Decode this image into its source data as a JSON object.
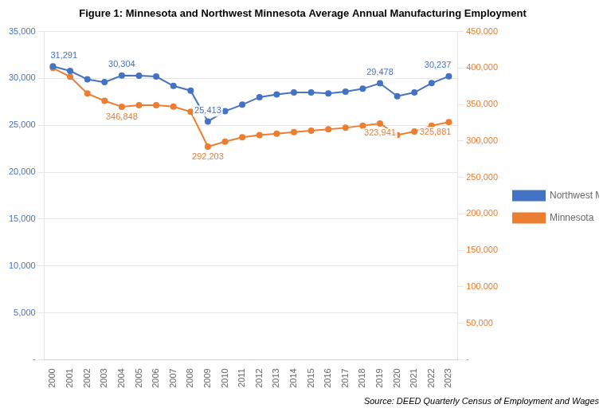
{
  "chart_data": {
    "type": "line",
    "title": "Figure 1: Minnesota and Northwest Minnesota Average Annual Manufacturing Employment",
    "source": "Source: DEED Quarterly Census of Employment and Wages",
    "x": [
      2000,
      2001,
      2002,
      2003,
      2004,
      2005,
      2006,
      2007,
      2008,
      2009,
      2010,
      2011,
      2012,
      2013,
      2014,
      2015,
      2016,
      2017,
      2018,
      2019,
      2020,
      2021,
      2022,
      2023
    ],
    "xlim": [
      1999.5,
      2023.5
    ],
    "xticks": [
      2000,
      2001,
      2002,
      2003,
      2004,
      2005,
      2006,
      2007,
      2008,
      2009,
      2010,
      2011,
      2012,
      2013,
      2014,
      2015,
      2016,
      2017,
      2018,
      2019,
      2020,
      2021,
      2022,
      2023
    ],
    "ylim": [
      0,
      35000
    ],
    "yticks": [
      {
        "value": 0,
        "label": "-"
      },
      {
        "value": 5000,
        "label": "5,000"
      },
      {
        "value": 10000,
        "label": "10,000"
      },
      {
        "value": 15000,
        "label": "15,000"
      },
      {
        "value": 20000,
        "label": "20,000"
      },
      {
        "value": 25000,
        "label": "25,000"
      },
      {
        "value": 30000,
        "label": "30,000"
      },
      {
        "value": 35000,
        "label": "35,000"
      }
    ],
    "y2lim": [
      0,
      450000
    ],
    "y2ticks": [
      {
        "value": 0,
        "label": "-"
      },
      {
        "value": 50000,
        "label": "50,000"
      },
      {
        "value": 100000,
        "label": "100,000"
      },
      {
        "value": 150000,
        "label": "150,000"
      },
      {
        "value": 200000,
        "label": "200,000"
      },
      {
        "value": 250000,
        "label": "250,000"
      },
      {
        "value": 300000,
        "label": "300,000"
      },
      {
        "value": 350000,
        "label": "350,000"
      },
      {
        "value": 400000,
        "label": "400,000"
      },
      {
        "value": 450000,
        "label": "450,000"
      }
    ],
    "grid": true,
    "legend": "right",
    "series": [
      {
        "name": "Northwest Minnesota",
        "color": "#4472C4",
        "axis": "y",
        "marker": "circle",
        "values": [
          31291,
          30800,
          29900,
          29600,
          30304,
          30300,
          30200,
          29200,
          28700,
          25413,
          26500,
          27200,
          28000,
          28300,
          28500,
          28500,
          28400,
          28600,
          28900,
          29478,
          28100,
          28500,
          29500,
          30237
        ],
        "value_labels": [
          "31,291",
          null,
          null,
          null,
          "30,304",
          null,
          null,
          null,
          null,
          "25,413",
          null,
          null,
          null,
          null,
          null,
          null,
          null,
          null,
          null,
          "29,478",
          null,
          null,
          null,
          "30,237"
        ]
      },
      {
        "name": "Minnesota",
        "color": "#ED7D31",
        "axis": "y2",
        "marker": "circle",
        "values": [
          400000,
          388000,
          365000,
          355000,
          346848,
          349000,
          349000,
          347000,
          340000,
          292203,
          299000,
          305000,
          308000,
          310000,
          312000,
          314000,
          316000,
          318000,
          321000,
          323941,
          308000,
          313000,
          321000,
          325881
        ],
        "value_labels": [
          null,
          null,
          null,
          null,
          "346,848",
          null,
          null,
          null,
          null,
          "292,203",
          null,
          null,
          null,
          null,
          null,
          null,
          null,
          null,
          null,
          "323,941",
          null,
          null,
          null,
          "325,881"
        ]
      }
    ]
  }
}
